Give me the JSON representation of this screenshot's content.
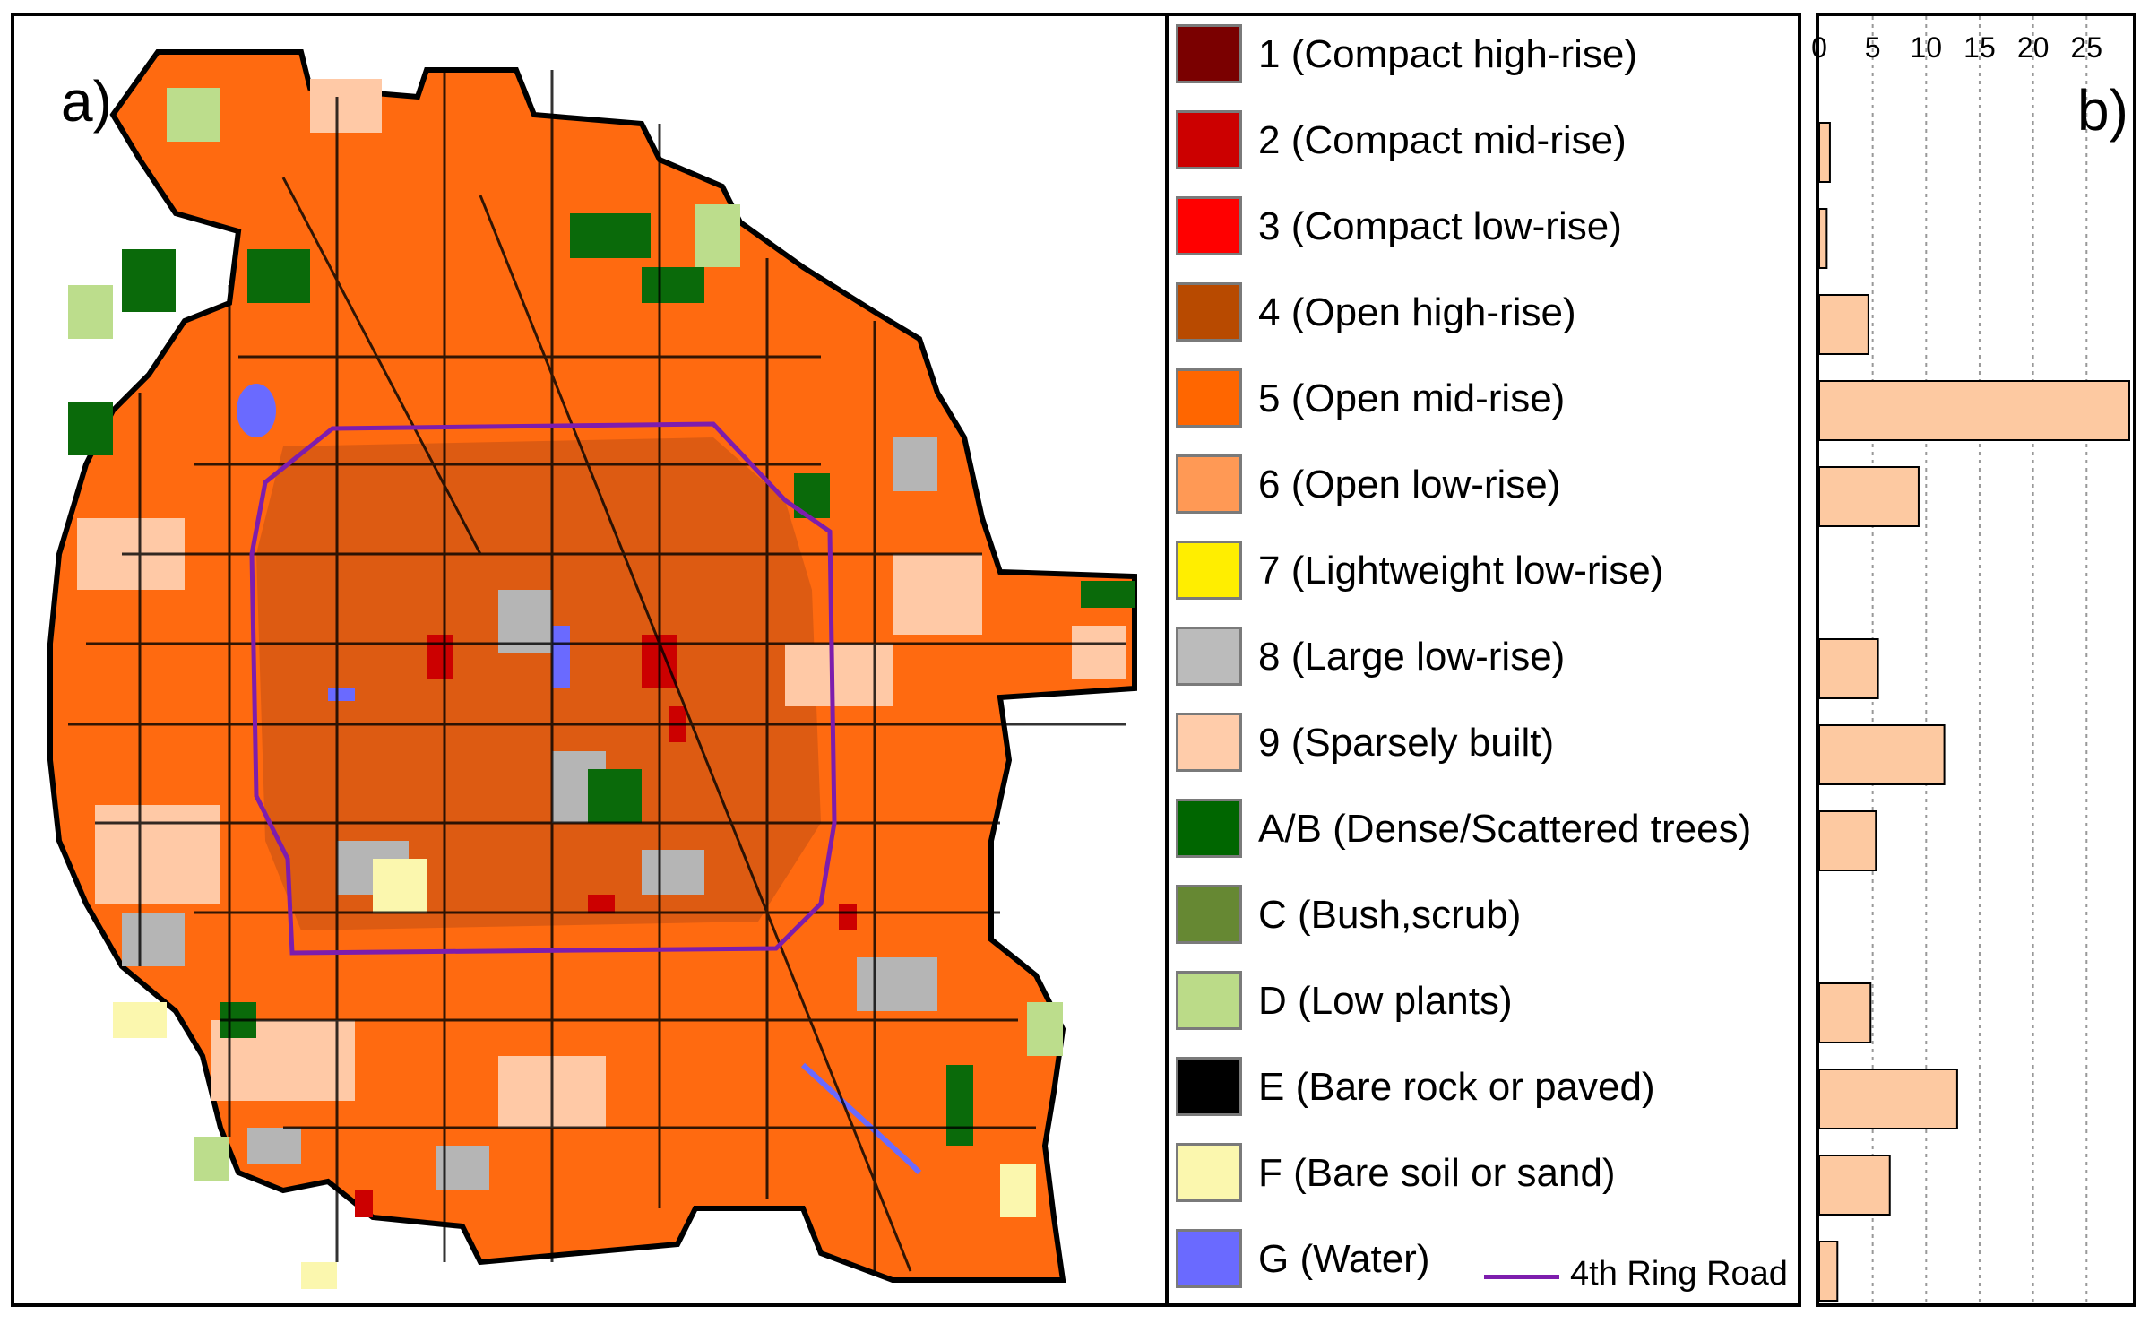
{
  "panel_a": {
    "label": "a)",
    "legend": [
      {
        "label": "1 (Compact high-rise)",
        "color": "#7a0000"
      },
      {
        "label": "2 (Compact mid-rise)",
        "color": "#cc0000"
      },
      {
        "label": "3 (Compact low-rise)",
        "color": "#ff0000"
      },
      {
        "label": "4 (Open high-rise)",
        "color": "#b84a00"
      },
      {
        "label": "5 (Open mid-rise)",
        "color": "#ff6600"
      },
      {
        "label": "6 (Open low-rise)",
        "color": "#ff9955"
      },
      {
        "label": "7 (Lightweight low-rise)",
        "color": "#ffee00"
      },
      {
        "label": "8 (Large low-rise)",
        "color": "#bbbbbb"
      },
      {
        "label": "9 (Sparsely built)",
        "color": "#ffccaa"
      },
      {
        "label": "A/B (Dense/Scattered trees)",
        "color": "#006600"
      },
      {
        "label": "C (Bush,scrub)",
        "color": "#668833"
      },
      {
        "label": "D (Low plants)",
        "color": "#bbdb88"
      },
      {
        "label": "E (Bare rock or paved)",
        "color": "#000000"
      },
      {
        "label": "F (Bare soil or sand)",
        "color": "#fbf7ae"
      },
      {
        "label": "G (Water)",
        "color": "#6a6aff"
      }
    ],
    "ring_road": {
      "label": "4th Ring Road",
      "color": "#7d1dad"
    }
  },
  "panel_b": {
    "label": "b)"
  },
  "chart_data": {
    "type": "bar",
    "orientation": "horizontal",
    "categories": [
      "1",
      "2",
      "3",
      "4",
      "5",
      "6",
      "7",
      "8",
      "9",
      "A/B",
      "C",
      "D",
      "E",
      "F",
      "G"
    ],
    "values": [
      0,
      1,
      0.7,
      4.6,
      29,
      9.3,
      0,
      5.5,
      11.7,
      5.3,
      0,
      4.8,
      12.9,
      6.6,
      1.7
    ],
    "x_ticks": [
      "0",
      "5",
      "10",
      "15",
      "20",
      "25"
    ],
    "xlim": [
      0,
      29
    ],
    "grid": true,
    "bar_color": "#fdc9a1"
  }
}
